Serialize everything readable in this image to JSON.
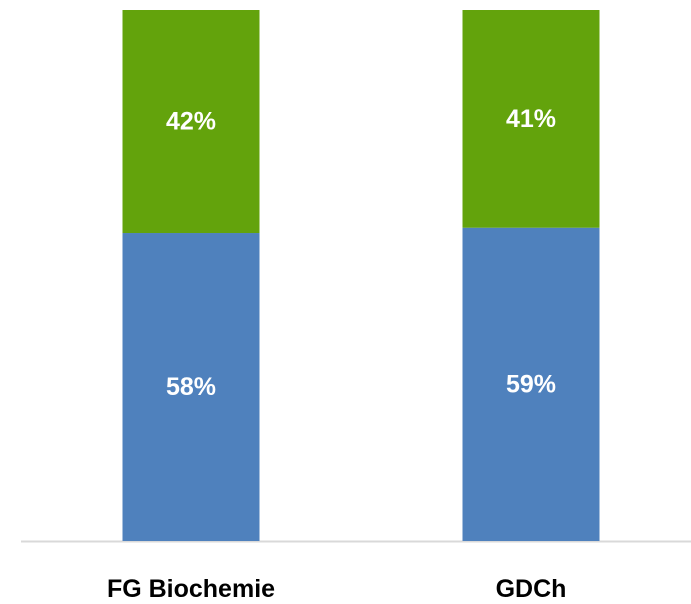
{
  "chart_data": {
    "type": "bar",
    "stacked": true,
    "percent_stacked": true,
    "categories": [
      "FG Biochemie",
      "GDCh"
    ],
    "series": [
      {
        "values": [
          58,
          59
        ],
        "color": "#4F81BD",
        "labels": [
          "58%",
          "59%"
        ]
      },
      {
        "values": [
          42,
          41
        ],
        "color": "#63A30C",
        "labels": [
          "42%",
          "41%"
        ]
      }
    ],
    "ylim": [
      0,
      100
    ],
    "legend": "none",
    "grid": false,
    "axis_line_color": "#D9D9D9"
  }
}
